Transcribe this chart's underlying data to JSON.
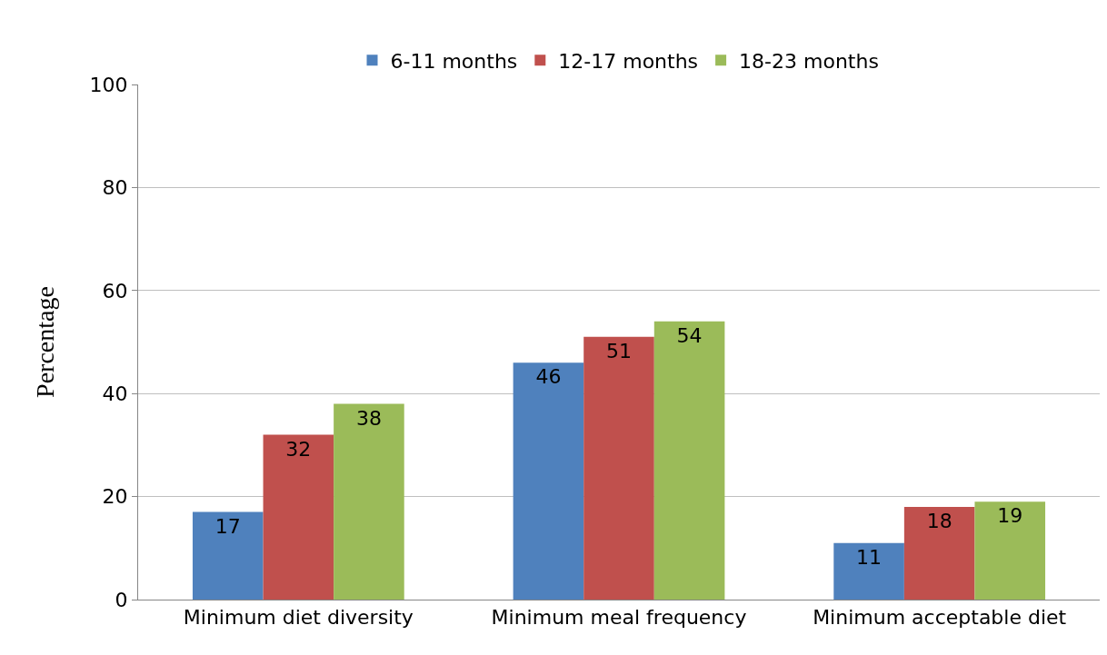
{
  "chart_data": {
    "type": "bar",
    "ylabel": "Percentage",
    "categories": [
      "Minimum diet diversity",
      "Minimum meal frequency",
      "Minimum acceptable diet"
    ],
    "series": [
      {
        "name": "6-11 months",
        "color": "#4f81bd",
        "values": [
          17,
          46,
          11
        ]
      },
      {
        "name": "12-17 months",
        "color": "#c0504d",
        "values": [
          32,
          51,
          18
        ]
      },
      {
        "name": "18-23 months",
        "color": "#9bbb59",
        "values": [
          38,
          54,
          19
        ]
      }
    ],
    "ylim": [
      0,
      100
    ],
    "yticks": [
      0,
      20,
      40,
      60,
      80,
      100
    ],
    "grid": "y",
    "legend": "top",
    "data_labels": true
  }
}
